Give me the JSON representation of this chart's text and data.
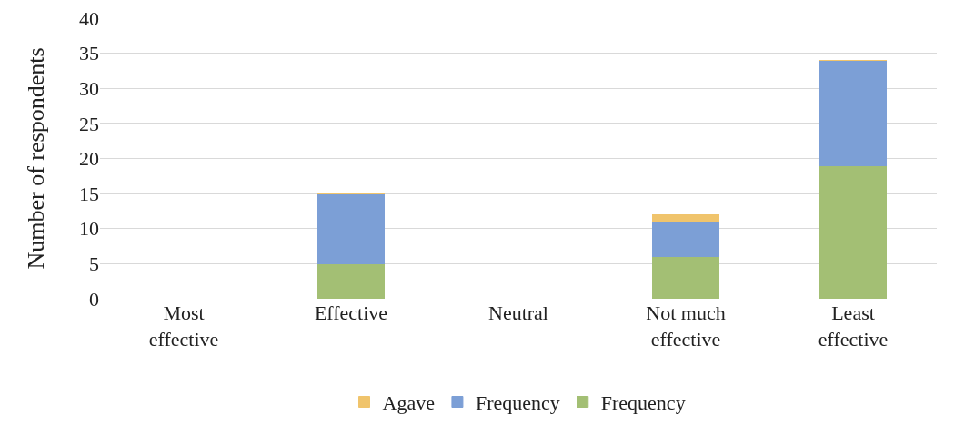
{
  "chart_data": {
    "type": "bar",
    "ylabel": "Number of respondents",
    "categories": [
      "Most effective",
      "Effective",
      "Neutral",
      "Not much effective",
      "Least effective"
    ],
    "stacked": true,
    "series": [
      {
        "name": "Frequency",
        "color": "#a3bf74",
        "values": [
          0,
          5,
          0,
          6,
          19
        ]
      },
      {
        "name": "Frequency",
        "color": "#7c9fd6",
        "values": [
          0,
          10,
          0,
          5,
          15
        ]
      },
      {
        "name": "Agave",
        "color": "#f0c46c",
        "values": [
          0,
          0,
          0,
          1,
          0
        ]
      }
    ],
    "ylim": [
      0,
      40
    ],
    "yticks": [
      0,
      5,
      10,
      15,
      20,
      25,
      30,
      35,
      40
    ],
    "grid": "y",
    "legend": "bottom"
  }
}
